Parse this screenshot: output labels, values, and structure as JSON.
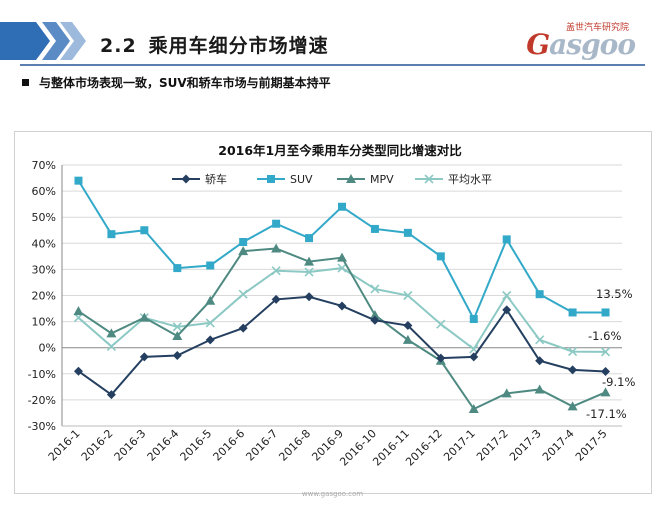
{
  "header": {
    "section_number": "2.2",
    "section_title": "乘用车细分市场增速",
    "logo_sub": "盖世汽车研究院",
    "logo_main": "Gasgoo"
  },
  "bullet": "与整体市场表现一致，SUV和轿车市场与前期基本持平",
  "footer_url": "www.gasgoo.com",
  "colors": {
    "sedan": "#243f60",
    "suv": "#33a9c9",
    "mpv": "#4e8a82",
    "avg": "#8cc9c4",
    "grid": "#d9d9d9",
    "chevron": "#5b8bc4"
  },
  "chart_data": {
    "type": "line",
    "title": "2016年1月至今乘用车分类型同比增速对比",
    "xlabel": "",
    "ylabel": "",
    "ylim": [
      -30,
      70
    ],
    "yticks": [
      70,
      60,
      50,
      40,
      30,
      20,
      10,
      0,
      -10,
      -20,
      -30
    ],
    "ytick_labels": [
      "70%",
      "60%",
      "50%",
      "40%",
      "30%",
      "20%",
      "10%",
      "0%",
      "-10%",
      "-20%",
      "-30%"
    ],
    "categories": [
      "2016-1",
      "2016-2",
      "2016-3",
      "2016-4",
      "2016-5",
      "2016-6",
      "2016-7",
      "2016-8",
      "2016-9",
      "2016-10",
      "2016-11",
      "2016-12",
      "2017-1",
      "2017-2",
      "2017-3",
      "2017-4",
      "2017-5"
    ],
    "series": [
      {
        "name": "轿车",
        "marker": "diamond",
        "values": [
          -9,
          -18,
          -3.5,
          -3,
          3,
          7.5,
          18.5,
          19.5,
          16,
          10.5,
          8.5,
          -4,
          -3.5,
          14.5,
          -5,
          -8.5,
          -9.1
        ]
      },
      {
        "name": "SUV",
        "marker": "square",
        "values": [
          64,
          43.5,
          45,
          30.5,
          31.5,
          40.5,
          47.5,
          42,
          54,
          45.5,
          44,
          35,
          11,
          41.5,
          20.5,
          13.5,
          13.5
        ]
      },
      {
        "name": "MPV",
        "marker": "triangle",
        "values": [
          14,
          5.5,
          11.5,
          4.5,
          18,
          37,
          38,
          33,
          34.5,
          12.5,
          3,
          -5,
          -23.5,
          -17.5,
          -16,
          -22.5,
          -17.1
        ]
      },
      {
        "name": "平均水平",
        "marker": "x",
        "values": [
          11.5,
          0.5,
          11.5,
          8,
          9.5,
          20.5,
          29.5,
          29,
          30.5,
          22.5,
          20,
          9,
          -0.5,
          20,
          3,
          -1.5,
          -1.6
        ]
      }
    ],
    "data_labels": [
      "13.5%",
      "-1.6%",
      "-9.1%",
      "-17.1%"
    ],
    "legend": "top",
    "grid": true
  }
}
